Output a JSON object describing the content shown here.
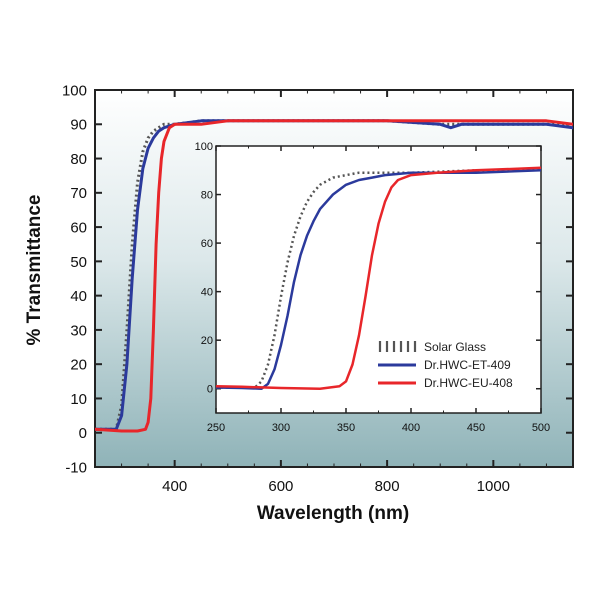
{
  "chart_data": [
    {
      "type": "line",
      "role": "main",
      "xlabel": "Wavelength (nm)",
      "ylabel": "% Transmittance",
      "xlim": [
        250,
        1150
      ],
      "ylim": [
        -10,
        100
      ],
      "xticks": [
        400,
        600,
        800,
        1000
      ],
      "yticks": [
        -10,
        0,
        10,
        20,
        30,
        40,
        50,
        60,
        70,
        80,
        90,
        100
      ],
      "series": [
        {
          "name": "Solar Glass",
          "color": "#555555",
          "style": "dotted",
          "x": [
            250,
            290,
            300,
            310,
            320,
            330,
            340,
            350,
            360,
            370,
            380,
            400,
            450,
            500,
            600,
            700,
            800,
            900,
            1000,
            1100,
            1150
          ],
          "y": [
            1,
            1,
            8,
            30,
            55,
            73,
            82,
            86,
            88,
            89,
            90,
            90,
            91,
            91,
            91,
            91,
            91,
            90,
            90,
            90,
            90
          ]
        },
        {
          "name": "Dr.HWC-ET-409",
          "color": "#2b3a9c",
          "style": "solid",
          "x": [
            250,
            280,
            290,
            300,
            310,
            320,
            330,
            340,
            350,
            360,
            370,
            380,
            400,
            450,
            500,
            600,
            700,
            800,
            900,
            920,
            940,
            1000,
            1100,
            1150
          ],
          "y": [
            1,
            1,
            1,
            5,
            20,
            45,
            65,
            77,
            83,
            86,
            88,
            89,
            90,
            91,
            91,
            91,
            91,
            91,
            90,
            89,
            90,
            90,
            90,
            89
          ]
        },
        {
          "name": "Dr.HWC-EU-408",
          "color": "#e8262a",
          "style": "solid",
          "x": [
            250,
            300,
            330,
            345,
            350,
            355,
            360,
            365,
            370,
            375,
            380,
            390,
            400,
            450,
            500,
            600,
            700,
            800,
            900,
            950,
            1000,
            1100,
            1150
          ],
          "y": [
            1,
            0.5,
            0.5,
            1,
            3,
            10,
            30,
            55,
            70,
            80,
            85,
            89,
            90,
            90,
            91,
            91,
            91,
            91,
            91,
            91,
            91,
            91,
            90
          ]
        }
      ]
    },
    {
      "type": "line",
      "role": "inset",
      "xlim": [
        250,
        500
      ],
      "ylim": [
        -10,
        100
      ],
      "xticks": [
        250,
        300,
        350,
        400,
        450,
        500
      ],
      "yticks": [
        0,
        20,
        40,
        60,
        80,
        100
      ],
      "legend_position": "lower-right",
      "series": [
        {
          "name": "Solar Glass",
          "color": "#555555",
          "style": "dotted",
          "x": [
            250,
            270,
            280,
            285,
            290,
            295,
            300,
            305,
            310,
            315,
            320,
            325,
            330,
            340,
            350,
            360,
            380,
            400,
            450,
            500
          ],
          "y": [
            0.5,
            0.5,
            0.5,
            3,
            10,
            22,
            38,
            52,
            63,
            71,
            77,
            81,
            84,
            87,
            88,
            89,
            89,
            89,
            90,
            90
          ]
        },
        {
          "name": "Dr.HWC-ET-409",
          "color": "#2b3a9c",
          "style": "solid",
          "x": [
            250,
            270,
            285,
            290,
            295,
            300,
            305,
            310,
            315,
            320,
            325,
            330,
            340,
            350,
            360,
            370,
            380,
            400,
            450,
            500
          ],
          "y": [
            0.5,
            0.3,
            0,
            2,
            8,
            18,
            30,
            44,
            55,
            63,
            69,
            74,
            80,
            84,
            86,
            87,
            88,
            89,
            89,
            90
          ]
        },
        {
          "name": "Dr.HWC-EU-408",
          "color": "#e8262a",
          "style": "solid",
          "x": [
            250,
            270,
            300,
            330,
            345,
            350,
            355,
            360,
            365,
            370,
            375,
            380,
            385,
            390,
            400,
            420,
            450,
            500
          ],
          "y": [
            1,
            0.8,
            0.3,
            0,
            1,
            3,
            10,
            22,
            38,
            55,
            68,
            77,
            83,
            86,
            88,
            89,
            90,
            91
          ]
        }
      ]
    }
  ]
}
